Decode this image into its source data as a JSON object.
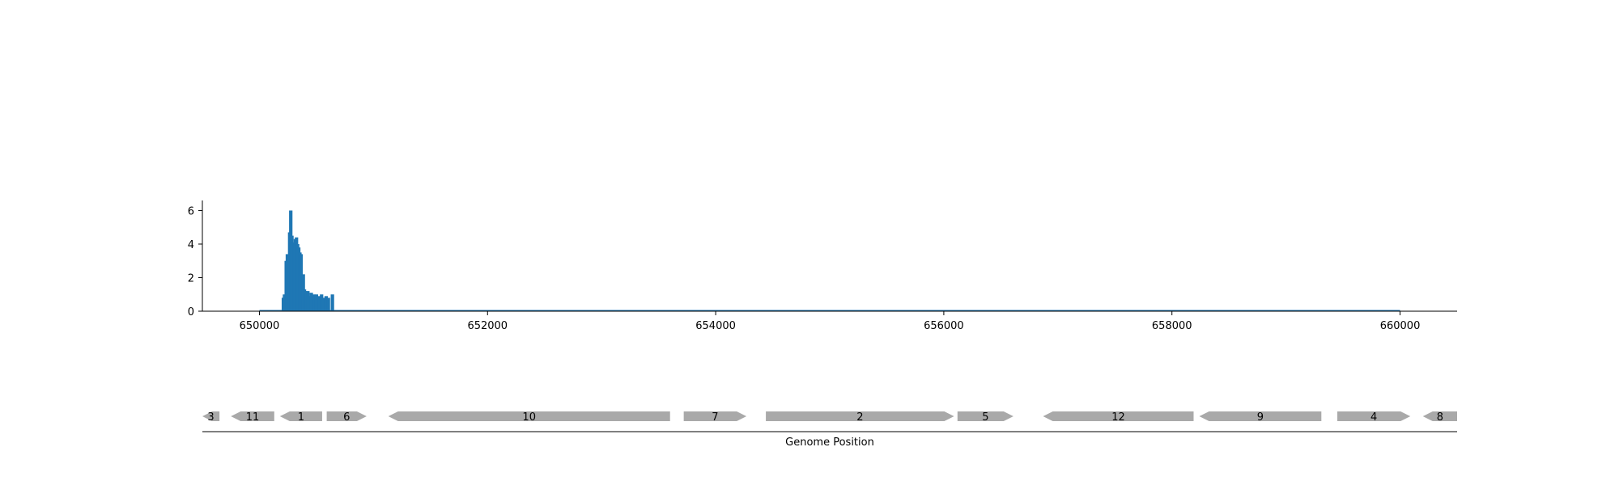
{
  "chart_data": [
    {
      "type": "bar",
      "title": "",
      "xlabel": "",
      "ylabel": "",
      "xlim": [
        649500,
        660500
      ],
      "ylim": [
        0,
        6.6
      ],
      "yticks": [
        0,
        2,
        4,
        6
      ],
      "xticks": [
        650000,
        652000,
        654000,
        656000,
        658000,
        660000
      ],
      "xtick_labels": [
        "650000",
        "652000",
        "654000",
        "656000",
        "658000",
        "660000"
      ],
      "ytick_labels": [
        "0",
        "2",
        "4",
        "6"
      ],
      "color": "#1f77b4",
      "baseline_range": [
        650000,
        660000
      ],
      "x": [
        650210,
        650220,
        650235,
        650245,
        650255,
        650265,
        650275,
        650285,
        650295,
        650305,
        650315,
        650325,
        650335,
        650345,
        650355,
        650365,
        650375,
        650385,
        650395,
        650405,
        650415,
        650425,
        650440,
        650455,
        650475,
        650500,
        650525,
        650545,
        650565,
        650585,
        650605,
        650640
      ],
      "values": [
        0.8,
        1.0,
        3.0,
        3.4,
        3.3,
        4.7,
        6.0,
        4.5,
        4.1,
        4.0,
        4.3,
        4.4,
        4.0,
        3.8,
        3.5,
        3.4,
        2.1,
        2.2,
        1.3,
        1.2,
        1.1,
        1.2,
        0.9,
        1.1,
        1.0,
        1.0,
        0.9,
        1.0,
        0.8,
        0.9,
        0.8,
        1.0
      ]
    },
    {
      "type": "gene-track",
      "xlabel": "Genome Position",
      "color": "#a9a9a9",
      "genes": [
        {
          "label": "3",
          "start": 649500,
          "end": 649650,
          "strand": "-"
        },
        {
          "label": "11",
          "start": 649750,
          "end": 650130,
          "strand": "-"
        },
        {
          "label": "1",
          "start": 650180,
          "end": 650550,
          "strand": "-"
        },
        {
          "label": "6",
          "start": 650590,
          "end": 650940,
          "strand": "+"
        },
        {
          "label": "10",
          "start": 651130,
          "end": 653600,
          "strand": "-"
        },
        {
          "label": "7",
          "start": 653720,
          "end": 654270,
          "strand": "+"
        },
        {
          "label": "2",
          "start": 654440,
          "end": 656090,
          "strand": "+"
        },
        {
          "label": "5",
          "start": 656120,
          "end": 656610,
          "strand": "+"
        },
        {
          "label": "12",
          "start": 656870,
          "end": 658190,
          "strand": "-"
        },
        {
          "label": "9",
          "start": 658240,
          "end": 659310,
          "strand": "-"
        },
        {
          "label": "4",
          "start": 659450,
          "end": 660090,
          "strand": "+"
        },
        {
          "label": "8",
          "start": 660200,
          "end": 660500,
          "strand": "-"
        }
      ]
    }
  ]
}
